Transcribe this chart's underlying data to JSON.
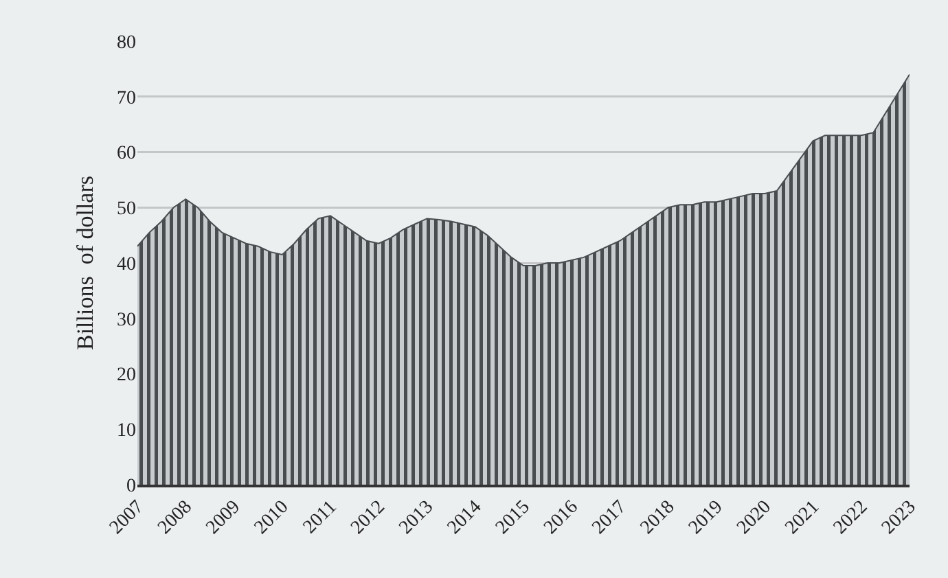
{
  "chart_data": {
    "type": "area",
    "ylabel": "Billions  of dollars",
    "x": [
      2007,
      2007.25,
      2007.5,
      2007.75,
      2008,
      2008.25,
      2008.5,
      2008.75,
      2009,
      2009.25,
      2009.5,
      2009.75,
      2010,
      2010.25,
      2010.5,
      2010.75,
      2011,
      2011.25,
      2011.5,
      2011.75,
      2012,
      2012.25,
      2012.5,
      2012.75,
      2013,
      2013.25,
      2013.5,
      2013.75,
      2014,
      2014.25,
      2014.5,
      2014.75,
      2015,
      2015.25,
      2015.5,
      2015.75,
      2016,
      2016.25,
      2016.5,
      2016.75,
      2017,
      2017.25,
      2017.5,
      2017.75,
      2018,
      2018.25,
      2018.5,
      2018.75,
      2019,
      2019.25,
      2019.5,
      2019.75,
      2020,
      2020.25,
      2020.5,
      2020.75,
      2021,
      2021.25,
      2021.5,
      2021.75,
      2022,
      2022.25,
      2022.5,
      2022.75,
      2023
    ],
    "series": [
      {
        "color": "#4a4d50",
        "values": [
          43,
          45.5,
          47.5,
          50,
          51.5,
          50,
          47.5,
          45.5,
          44.5,
          43.5,
          43,
          42,
          41.5,
          43.5,
          46,
          48,
          48.5,
          47,
          45.5,
          44,
          43.5,
          44.5,
          46,
          47,
          48,
          47.8,
          47.5,
          47,
          46.5,
          45,
          43,
          41,
          39.5,
          39.5,
          40,
          40,
          40.5,
          41,
          42,
          43,
          44,
          45.5,
          47,
          48.5,
          50,
          50.5,
          50.5,
          51,
          51,
          51.5,
          52,
          52.5,
          52.5,
          53,
          56,
          59,
          62,
          63,
          63,
          63,
          63,
          63.5,
          67,
          70.5,
          74
        ]
      }
    ],
    "xlim": [
      2007,
      2023
    ],
    "xticks": [
      2007,
      2008,
      2009,
      2010,
      2011,
      2012,
      2013,
      2014,
      2015,
      2016,
      2017,
      2018,
      2019,
      2020,
      2021,
      2022,
      2023
    ],
    "ylim": [
      0,
      80
    ],
    "yticks": [
      0,
      10,
      20,
      30,
      40,
      50,
      60,
      70,
      80
    ],
    "grid": "y"
  }
}
